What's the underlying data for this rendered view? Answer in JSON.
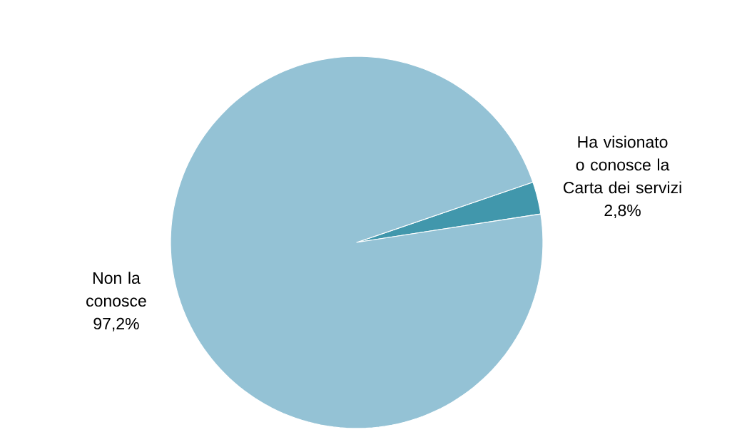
{
  "chart_data": {
    "type": "pie",
    "categories": [
      "Ha visionato o conosce la Carta dei servizi",
      "Non la conosce"
    ],
    "values": [
      2.8,
      97.2
    ],
    "colors": [
      "#4197ac",
      "#94c2d5"
    ],
    "value_labels": [
      "2,8%",
      "97,2%"
    ]
  }
}
